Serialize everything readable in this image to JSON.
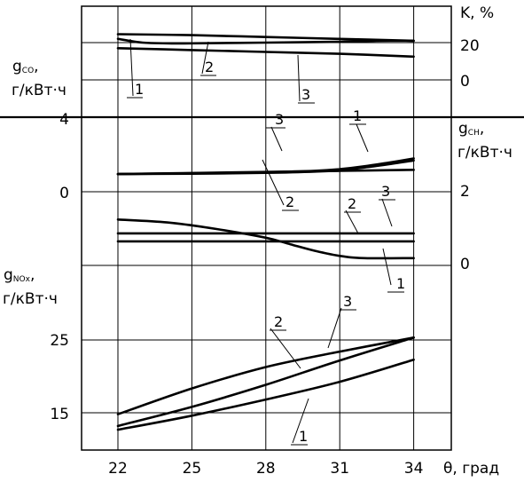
{
  "chart_data": {
    "type": "line",
    "x_label": "θ, град",
    "x_ticks": [
      22,
      25,
      28,
      31,
      34
    ],
    "xlim": [
      20.9,
      35.2
    ],
    "panels": [
      {
        "id": "co",
        "ylabel_main": "g",
        "ylabel_sub": "CO",
        "ylabel_suffix": ",",
        "ylabel_unit": "г/кВт·ч",
        "left_tick": "4",
        "right_axis": {
          "label": "K, %",
          "ticks": [
            "20",
            "0"
          ]
        },
        "series": [
          {
            "name": "1",
            "x": [
              22,
              23,
              24,
              25,
              28,
              31,
              32.5,
              34
            ],
            "y": [
              42,
              40,
              39.6,
              39.6,
              40,
              40.5,
              41,
              41
            ]
          },
          {
            "name": "2",
            "x": [
              22,
              25,
              28,
              31,
              34
            ],
            "y": [
              44.5,
              44,
              43,
              42,
              41
            ]
          },
          {
            "name": "3",
            "x": [
              22,
              25,
              28,
              31,
              34
            ],
            "y": [
              37,
              36,
              35,
              34,
              32.5
            ]
          }
        ],
        "labels": [
          "1",
          "2",
          "3"
        ]
      },
      {
        "id": "ch",
        "ylabel_main": "g",
        "ylabel_sub": "CH",
        "ylabel_suffix": ",",
        "ylabel_unit": "г/кВт·ч",
        "left_tick": "0",
        "right_ticks": [
          "2",
          "0"
        ],
        "series": [
          {
            "name": "1",
            "x": [
              22,
              25,
              28,
              30,
              31,
              32,
              33,
              34
            ],
            "y": [
              2.15,
              2.25,
              2.38,
              2.55,
              2.75,
              3.1,
              3.55,
              4.05
            ]
          },
          {
            "name": "2",
            "x": [
              22,
              25,
              28,
              30,
              31,
              32,
              33,
              34
            ],
            "y": [
              2.15,
              2.2,
              2.3,
              2.45,
              2.6,
              2.95,
              3.35,
              3.8
            ]
          },
          {
            "name": "3",
            "x": [
              22,
              25,
              28,
              31,
              34
            ],
            "y": [
              2.15,
              2.28,
              2.41,
              2.54,
              2.67
            ]
          }
        ],
        "labels": [
          "1",
          "2",
          "3"
        ]
      },
      {
        "id": "k",
        "series": [
          {
            "name": "1",
            "x": [
              22,
              24,
              26,
              28,
              29,
              30,
              31,
              32,
              34
            ],
            "y": [
              0.63,
              0.59,
              0.5,
              0.38,
              0.29,
              0.2,
              0.13,
              0.1,
              0.1
            ]
          },
          {
            "name": "2",
            "x": [
              22,
              34
            ],
            "y": [
              0.44,
              0.44
            ]
          },
          {
            "name": "3",
            "x": [
              22,
              34
            ],
            "y": [
              0.33,
              0.33
            ]
          }
        ],
        "labels": [
          "1",
          "2",
          "3"
        ]
      },
      {
        "id": "nox",
        "ylabel_main": "g",
        "ylabel_sub": "NOx",
        "ylabel_suffix": ",",
        "ylabel_unit": "г/кВт·ч",
        "left_ticks": [
          25,
          15
        ],
        "series": [
          {
            "name": "1",
            "x": [
              22,
              25,
              28,
              31,
              34
            ],
            "y": [
              12.7,
              14.6,
              16.8,
              19.2,
              22.2
            ]
          },
          {
            "name": "2",
            "x": [
              22,
              25,
              28,
              31,
              34
            ],
            "y": [
              14.8,
              18.3,
              21.2,
              23.3,
              25.2
            ]
          },
          {
            "name": "3",
            "x": [
              22,
              25,
              28,
              31,
              34
            ],
            "y": [
              13.2,
              15.8,
              18.8,
              22.1,
              25.2
            ]
          }
        ],
        "labels": [
          "1",
          "2",
          "3"
        ]
      }
    ]
  }
}
